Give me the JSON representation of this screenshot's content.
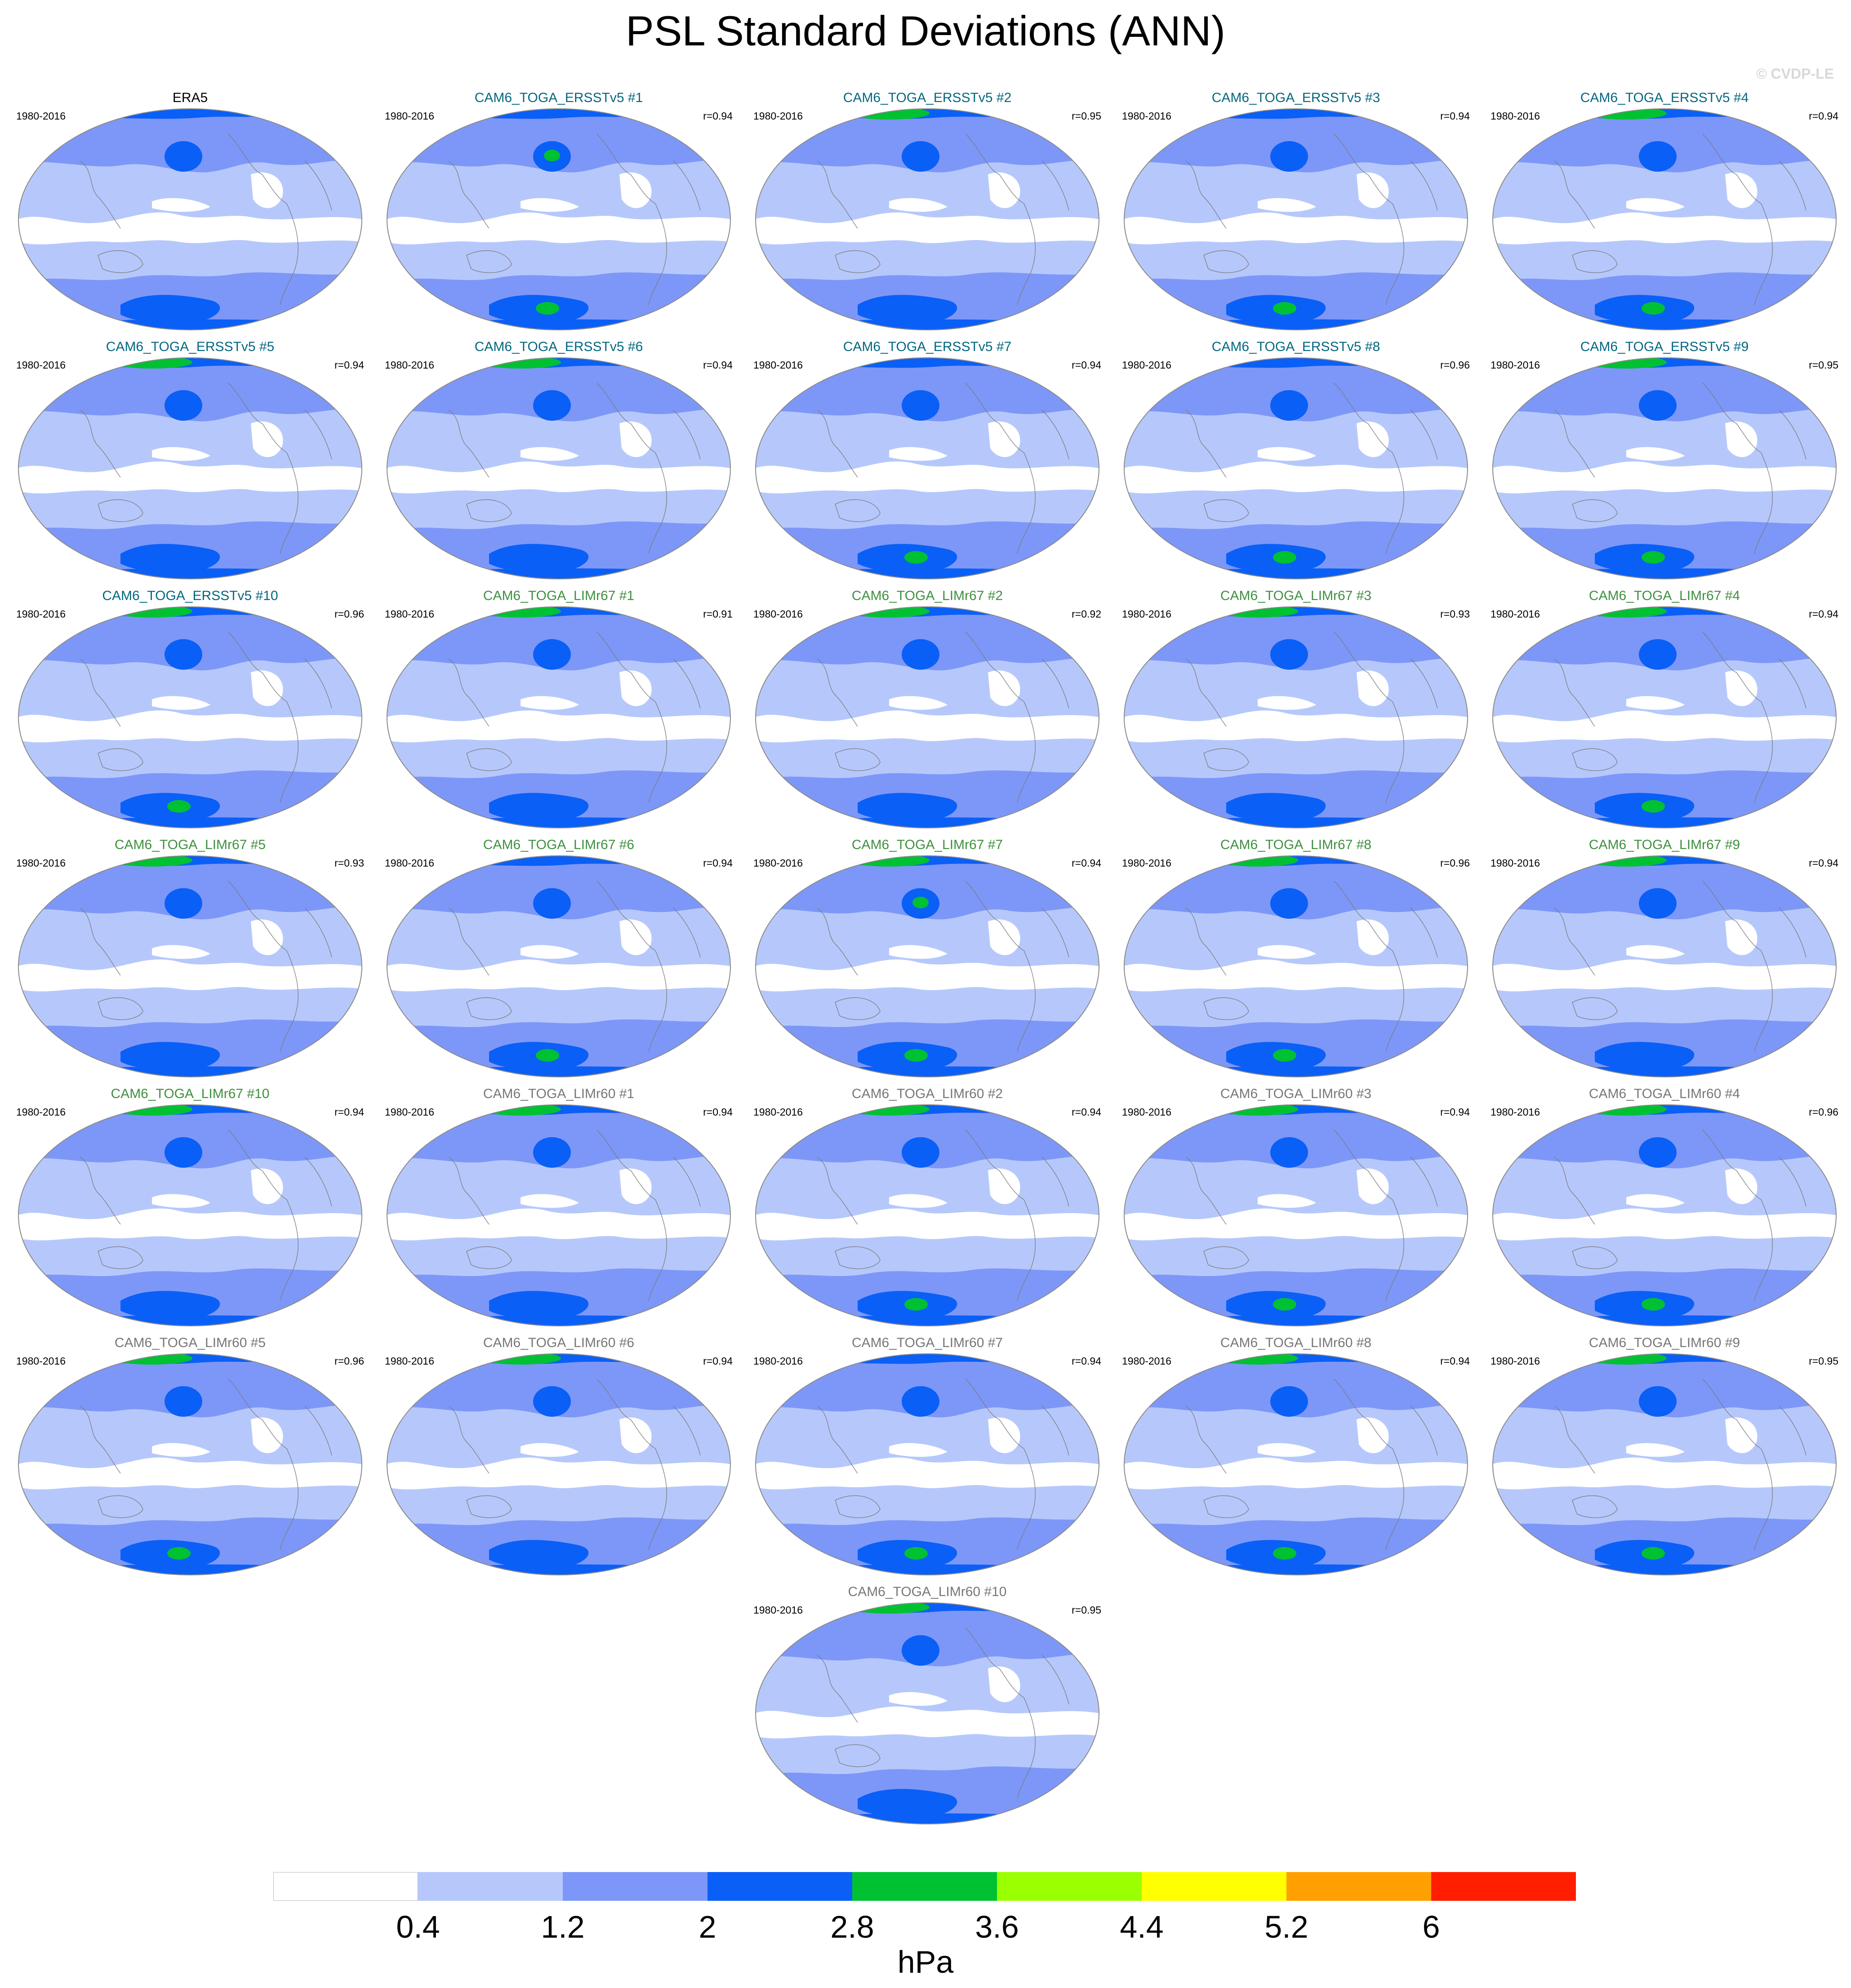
{
  "title": "PSL Standard Deviations (ANN)",
  "credit": "© CVDP-LE",
  "period": "1980-2016",
  "colors": {
    "era5": "#000000",
    "ersst": "#036780",
    "limr67": "#3f8f3f",
    "limr60": "#777777",
    "bins": [
      "#ffffff",
      "#b6c8fb",
      "#7d97f8",
      "#0a5ff6",
      "#00c132",
      "#9aff00",
      "#ffff00",
      "#ffa000",
      "#ff1e00"
    ]
  },
  "panels": [
    {
      "name": "ERA5",
      "r": "",
      "group": "era5",
      "greens": []
    },
    {
      "name": "CAM6_TOGA_ERSSTv5 #1",
      "r": "r=0.94",
      "group": "ersst",
      "greens": [
        "nh",
        "sh"
      ]
    },
    {
      "name": "CAM6_TOGA_ERSSTv5 #2",
      "r": "r=0.95",
      "group": "ersst",
      "greens": [
        "arctic"
      ]
    },
    {
      "name": "CAM6_TOGA_ERSSTv5 #3",
      "r": "r=0.94",
      "group": "ersst",
      "greens": [
        "sh"
      ]
    },
    {
      "name": "CAM6_TOGA_ERSSTv5 #4",
      "r": "r=0.94",
      "group": "ersst",
      "greens": [
        "arctic",
        "sh"
      ]
    },
    {
      "name": "CAM6_TOGA_ERSSTv5 #5",
      "r": "r=0.94",
      "group": "ersst",
      "greens": [
        "arctic"
      ]
    },
    {
      "name": "CAM6_TOGA_ERSSTv5 #6",
      "r": "r=0.94",
      "group": "ersst",
      "greens": [
        "arctic"
      ]
    },
    {
      "name": "CAM6_TOGA_ERSSTv5 #7",
      "r": "r=0.94",
      "group": "ersst",
      "greens": [
        "sh"
      ]
    },
    {
      "name": "CAM6_TOGA_ERSSTv5 #8",
      "r": "r=0.96",
      "group": "ersst",
      "greens": [
        "sh"
      ]
    },
    {
      "name": "CAM6_TOGA_ERSSTv5 #9",
      "r": "r=0.95",
      "group": "ersst",
      "greens": [
        "arctic",
        "sh"
      ]
    },
    {
      "name": "CAM6_TOGA_ERSSTv5 #10",
      "r": "r=0.96",
      "group": "ersst",
      "greens": [
        "arctic",
        "sh"
      ]
    },
    {
      "name": "CAM6_TOGA_LIMr67 #1",
      "r": "r=0.91",
      "group": "limr67",
      "greens": [
        "arctic"
      ]
    },
    {
      "name": "CAM6_TOGA_LIMr67 #2",
      "r": "r=0.92",
      "group": "limr67",
      "greens": [
        "arctic"
      ]
    },
    {
      "name": "CAM6_TOGA_LIMr67 #3",
      "r": "r=0.93",
      "group": "limr67",
      "greens": [
        "arctic"
      ]
    },
    {
      "name": "CAM6_TOGA_LIMr67 #4",
      "r": "r=0.94",
      "group": "limr67",
      "greens": [
        "arctic",
        "sh"
      ]
    },
    {
      "name": "CAM6_TOGA_LIMr67 #5",
      "r": "r=0.93",
      "group": "limr67",
      "greens": [
        "arctic"
      ]
    },
    {
      "name": "CAM6_TOGA_LIMr67 #6",
      "r": "r=0.94",
      "group": "limr67",
      "greens": [
        "sh"
      ]
    },
    {
      "name": "CAM6_TOGA_LIMr67 #7",
      "r": "r=0.94",
      "group": "limr67",
      "greens": [
        "arctic",
        "nh",
        "sh"
      ]
    },
    {
      "name": "CAM6_TOGA_LIMr67 #8",
      "r": "r=0.96",
      "group": "limr67",
      "greens": [
        "arctic",
        "sh"
      ]
    },
    {
      "name": "CAM6_TOGA_LIMr67 #9",
      "r": "r=0.94",
      "group": "limr67",
      "greens": [
        "arctic"
      ]
    },
    {
      "name": "CAM6_TOGA_LIMr67 #10",
      "r": "r=0.94",
      "group": "limr67",
      "greens": [
        "arctic"
      ]
    },
    {
      "name": "CAM6_TOGA_LIMr60 #1",
      "r": "r=0.94",
      "group": "limr60",
      "greens": [
        "arctic"
      ]
    },
    {
      "name": "CAM6_TOGA_LIMr60 #2",
      "r": "r=0.94",
      "group": "limr60",
      "greens": [
        "arctic",
        "sh"
      ]
    },
    {
      "name": "CAM6_TOGA_LIMr60 #3",
      "r": "r=0.94",
      "group": "limr60",
      "greens": [
        "arctic",
        "sh"
      ]
    },
    {
      "name": "CAM6_TOGA_LIMr60 #4",
      "r": "r=0.96",
      "group": "limr60",
      "greens": [
        "arctic",
        "sh"
      ]
    },
    {
      "name": "CAM6_TOGA_LIMr60 #5",
      "r": "r=0.96",
      "group": "limr60",
      "greens": [
        "arctic",
        "sh"
      ]
    },
    {
      "name": "CAM6_TOGA_LIMr60 #6",
      "r": "r=0.94",
      "group": "limr60",
      "greens": [
        "arctic"
      ]
    },
    {
      "name": "CAM6_TOGA_LIMr60 #7",
      "r": "r=0.94",
      "group": "limr60",
      "greens": [
        "sh"
      ]
    },
    {
      "name": "CAM6_TOGA_LIMr60 #8",
      "r": "r=0.94",
      "group": "limr60",
      "greens": [
        "arctic",
        "sh"
      ]
    },
    {
      "name": "CAM6_TOGA_LIMr60 #9",
      "r": "r=0.95",
      "group": "limr60",
      "greens": [
        "arctic",
        "sh"
      ]
    },
    {
      "name": "CAM6_TOGA_LIMr60 #10",
      "r": "r=0.95",
      "group": "limr60",
      "greens": [
        "arctic"
      ]
    }
  ],
  "colorbar": {
    "labels": [
      "0.4",
      "1.2",
      "2",
      "2.8",
      "3.6",
      "4.4",
      "5.2",
      "6"
    ],
    "units": "hPa"
  }
}
